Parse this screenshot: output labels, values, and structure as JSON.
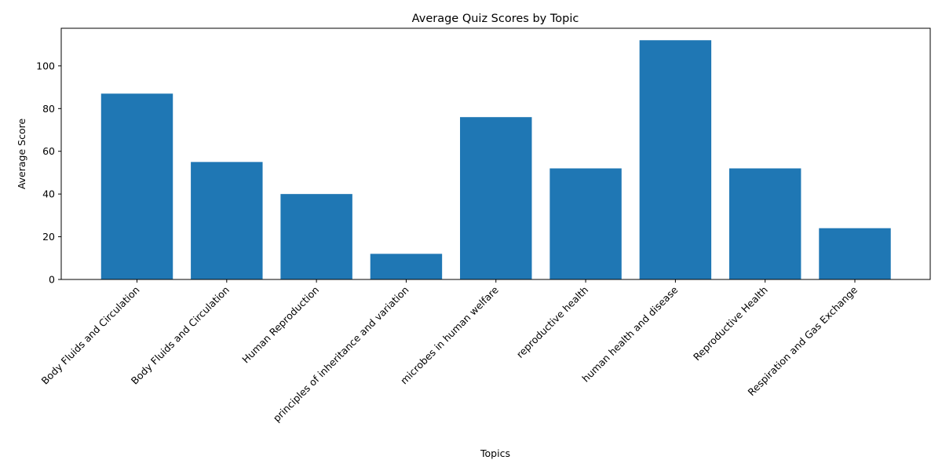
{
  "chart_data": {
    "type": "bar",
    "title": "Average Quiz Scores by Topic",
    "xlabel": "Topics",
    "ylabel": "Average Score",
    "categories": [
      "Body Fluids and Circulation",
      "Body Fluids and Circulation",
      "Human Reproduction",
      "principles of inheritance and variation",
      "microbes in human welfare",
      "reproductive health",
      "human health and disease",
      "Reproductive Health",
      "Respiration and Gas Exchange"
    ],
    "values": [
      87,
      55,
      40,
      12,
      76,
      52,
      112,
      52,
      24
    ],
    "ylim": [
      0,
      117.6
    ],
    "yticks": [
      0,
      20,
      40,
      60,
      80,
      100
    ],
    "grid": false,
    "legend": "none",
    "bar_color": "#1f77b4"
  }
}
